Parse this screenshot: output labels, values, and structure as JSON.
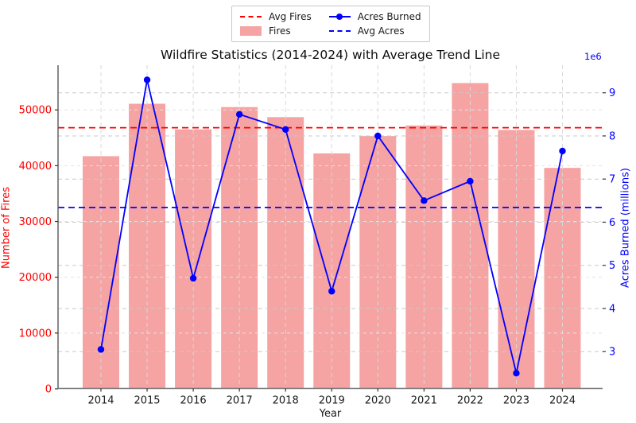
{
  "figure": {
    "background": "#ffffff"
  },
  "legend": {
    "entries": [
      {
        "label": "Avg Fires",
        "handle": "dashed-line",
        "color": "#ff0000"
      },
      {
        "label": "Fires",
        "handle": "patch",
        "color": "#f5a3a3"
      },
      {
        "label": "Acres Burned",
        "handle": "line-with-marker",
        "color": "#0000ff"
      },
      {
        "label": "Avg Acres",
        "handle": "dashed-line",
        "color": "#0000ff"
      }
    ]
  },
  "chart_data": {
    "type": "combo",
    "title": "Wildfire Statistics (2014-2024) with Average Trend Line",
    "xlabel": "Year",
    "categories": [
      2014,
      2015,
      2016,
      2017,
      2018,
      2019,
      2020,
      2021,
      2022,
      2023,
      2024
    ],
    "series": [
      {
        "name": "Fires",
        "type": "bar",
        "axis": "left",
        "color": "#f5a3a3",
        "values": [
          41700,
          51100,
          46500,
          50500,
          48700,
          42200,
          45300,
          47200,
          54800,
          46400,
          39600
        ]
      },
      {
        "name": "Acres Burned",
        "type": "line",
        "axis": "right",
        "color": "#0000ff",
        "marker": "circle",
        "values_millions": [
          3.05,
          9.3,
          4.7,
          8.5,
          8.15,
          4.4,
          8.0,
          6.5,
          6.95,
          2.5,
          7.65
        ]
      }
    ],
    "avg_lines": [
      {
        "name": "Avg Fires",
        "axis": "left",
        "value": 46800,
        "color": "#ff0000",
        "linestyle": "dashed"
      },
      {
        "name": "Avg Acres",
        "axis": "right",
        "value_millions": 6.34,
        "color": "#0000ff",
        "linestyle": "dashed"
      }
    ],
    "axes": {
      "left": {
        "label": "Number of Fires",
        "color": "#ff0000",
        "ticks": [
          0,
          10000,
          20000,
          30000,
          40000,
          50000
        ],
        "range": [
          0,
          57300
        ]
      },
      "right": {
        "label": "Acres Burned (millions)",
        "color": "#0000ff",
        "ticks": [
          3,
          4,
          5,
          6,
          7,
          8,
          9
        ],
        "range": [
          2.14,
          9.53
        ],
        "offset_text": "1e6"
      },
      "x": {
        "label": "Year",
        "ticks": [
          2014,
          2015,
          2016,
          2017,
          2018,
          2019,
          2020,
          2021,
          2022,
          2023,
          2024
        ]
      }
    },
    "grid": {
      "visible": true,
      "linestyle": "dashed"
    }
  }
}
